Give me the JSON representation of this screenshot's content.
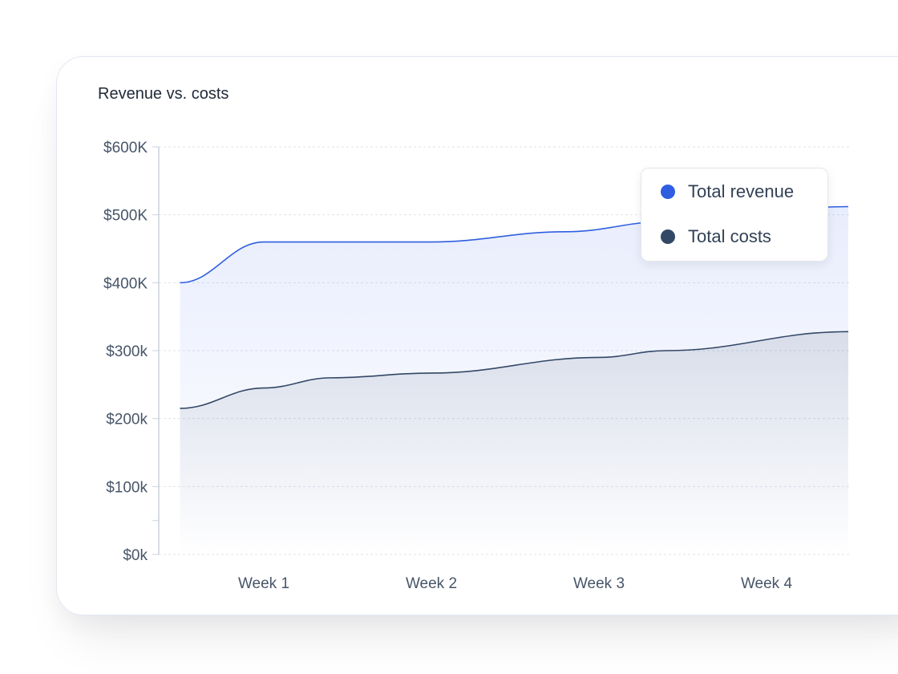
{
  "chart_data": {
    "type": "area",
    "title": "Revenue vs. costs",
    "xlabel": "",
    "ylabel": "",
    "categories": [
      "Week 1",
      "Week 2",
      "Week 3",
      "Week 4"
    ],
    "y_ticks": [
      "$0k",
      "$100k",
      "$200k",
      "$300k",
      "$400K",
      "$500K",
      "$600K"
    ],
    "ylim": [
      0,
      600000
    ],
    "grid": true,
    "legend_position": "top-right",
    "series": [
      {
        "name": "Total revenue",
        "color": "#2f5fe0",
        "points": [
          {
            "week": 0.5,
            "value": 400000
          },
          {
            "week": 1.0,
            "value": 460000
          },
          {
            "week": 2.0,
            "value": 460000
          },
          {
            "week": 2.8,
            "value": 475000
          },
          {
            "week": 3.4,
            "value": 490000
          },
          {
            "week": 4.6,
            "value": 512000
          }
        ]
      },
      {
        "name": "Total costs",
        "color": "#334766",
        "points": [
          {
            "week": 0.5,
            "value": 215000
          },
          {
            "week": 1.0,
            "value": 245000
          },
          {
            "week": 1.4,
            "value": 260000
          },
          {
            "week": 2.0,
            "value": 267000
          },
          {
            "week": 3.0,
            "value": 290000
          },
          {
            "week": 3.4,
            "value": 300000
          },
          {
            "week": 4.6,
            "value": 328000
          }
        ]
      }
    ]
  }
}
